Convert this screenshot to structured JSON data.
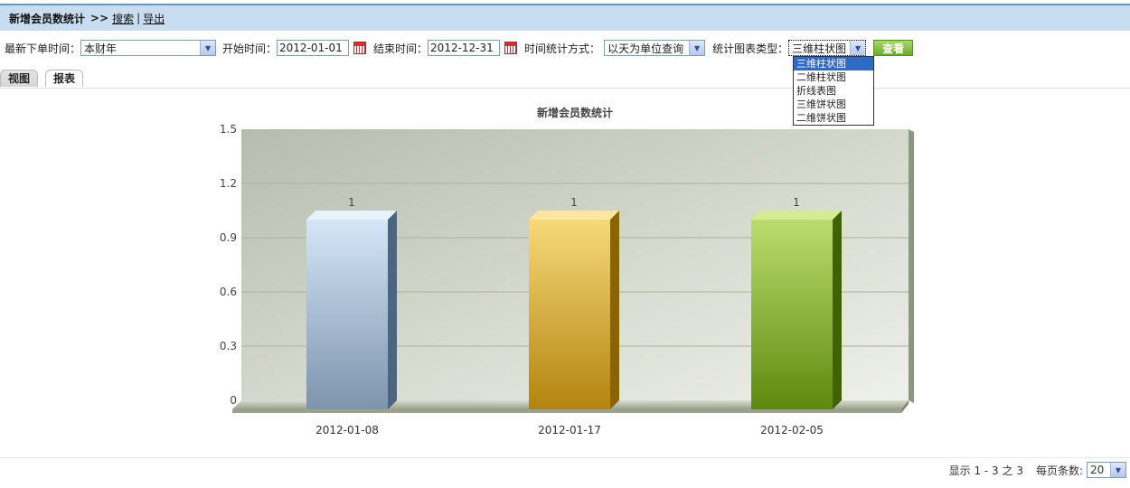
{
  "header": {
    "title": "新增会员数统计",
    "separator": ">>",
    "search_link": "搜索",
    "pipe": "|",
    "export_link": "导出"
  },
  "filters": {
    "latest_label": "最新下单时间：",
    "latest_value": "本财年",
    "start_label": "开始时间：",
    "start_value": "2012-01-01",
    "end_label": "结束时间：",
    "end_value": "2012-12-31",
    "stat_mode_label": "时间统计方式：",
    "stat_mode_value": "以天为单位查询",
    "chart_type_label": "统计图表类型：",
    "chart_type_value": "三维柱状图",
    "view_button": "查看",
    "chart_type_options": [
      "三维柱状图",
      "二维柱状图",
      "折线表图",
      "三维饼状图",
      "二维饼状图"
    ]
  },
  "tabs": {
    "view": "视图",
    "report": "报表"
  },
  "footer": {
    "display_text": "显示 1 - 3 之 3",
    "per_page_label": "每页条数:",
    "per_page_value": "20"
  },
  "chart_data": {
    "type": "bar",
    "title": "新增会员数统计",
    "categories": [
      "2012-01-08",
      "2012-01-17",
      "2012-02-05"
    ],
    "values": [
      1,
      1,
      1
    ],
    "data_labels": [
      "1",
      "1",
      "1"
    ],
    "ylim": [
      0,
      1.5
    ],
    "yticks": [
      "0",
      "0.3",
      "0.6",
      "0.9",
      "1.2",
      "1.5"
    ],
    "xlabel": "",
    "ylabel": "",
    "grid": true,
    "style": "3d",
    "bar_colors": [
      {
        "front_top": "#d4e6f7",
        "front_bottom": "#7d94ad",
        "side": "#4c6581",
        "top": "#e8f2fb"
      },
      {
        "front_top": "#f7d97a",
        "front_bottom": "#b3840f",
        "side": "#8a6305",
        "top": "#fbe7a3"
      },
      {
        "front_top": "#bcdc6f",
        "front_bottom": "#5d8a0e",
        "side": "#3f6304",
        "top": "#d3ec95"
      }
    ]
  }
}
